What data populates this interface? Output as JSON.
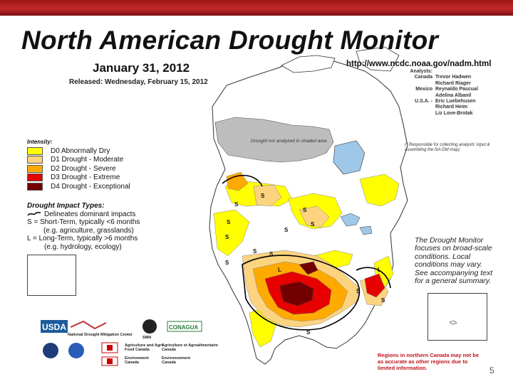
{
  "header": {
    "title": "North American Drought Monitor",
    "date": "January 31, 2012",
    "released": "Released: Wednesday, February 15, 2012",
    "url": "http://www.ncdc.noaa.gov/nadm.html"
  },
  "analysts": {
    "label": "Analysts:",
    "rows": [
      {
        "country": "Canada",
        "name": "Trevor Hadwen"
      },
      {
        "country": "",
        "name": "Richard Riager"
      },
      {
        "country": "Mexico",
        "name": "Reynaldo Pascual"
      },
      {
        "country": "",
        "name": "Adelina Albanil"
      },
      {
        "country": "U.S.A. -",
        "name": "Eric Luebehusen"
      },
      {
        "country": "",
        "name": "Richard Heim"
      },
      {
        "country": "",
        "name": "Liz Love-Brotak"
      }
    ],
    "responsible_note": "(* Responsible for collecting analysts' input & assembling the NA-DM map)"
  },
  "legend": {
    "title": "Intensity:",
    "items": [
      {
        "label": "D0 Abnormally Dry",
        "color": "#ffff00"
      },
      {
        "label": "D1 Drought - Moderate",
        "color": "#fcd37f"
      },
      {
        "label": "D2 Drought - Severe",
        "color": "#ffaa00"
      },
      {
        "label": "D3 Drought - Extreme",
        "color": "#e60000"
      },
      {
        "label": "D4 Drought - Exceptional",
        "color": "#730000"
      }
    ]
  },
  "impact": {
    "title": "Drought Impact Types:",
    "delineates": "Delineates dominant impacts",
    "short": "S = Short-Term, typically <6 months",
    "short_eg": "(e.g. agriculture, grasslands)",
    "long": "L = Long-Term, typically >6 months",
    "long_eg": "(e.g. hydrology, ecology)"
  },
  "map": {
    "no_analysis_note": "Drought not analyzed in shaded area",
    "map_labels": [
      "S",
      "L",
      "S",
      "S",
      "S",
      "S",
      "S",
      "S",
      "S",
      "S",
      "S",
      "S",
      "L",
      "L",
      "S",
      "S",
      "S"
    ]
  },
  "note": "The Drought Monitor focuses on broad-scale conditions. Local conditions may vary. See accompanying text for a general summary.",
  "footnote": "Regions in northern Canada may not be as accurate as other regions due to limited information.",
  "page_number": "5",
  "logos": {
    "usda": "USDA",
    "ndmc": "National Drought Mitigation Center",
    "smn": "SMN",
    "conagua": "CONAGUA",
    "agri_en": "Agriculture and Agri-Food Canada",
    "agri_fr": "Agriculture et Agroalimentaire Canada",
    "env_en": "Environment Canada",
    "env_fr": "Environnement Canada"
  },
  "colors": {
    "topbar": "#b01e1e",
    "no_analysis": "#bdbdbd",
    "water": "#9ec7e8",
    "footnote": "#c0141c"
  }
}
